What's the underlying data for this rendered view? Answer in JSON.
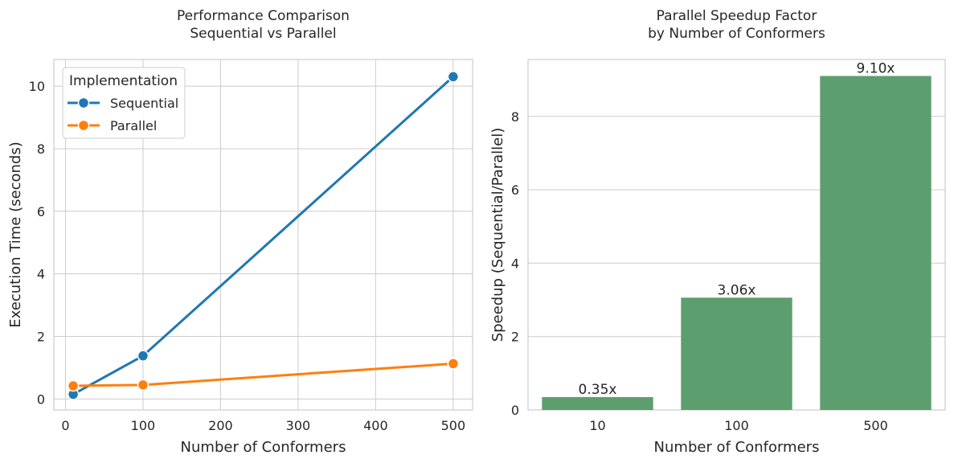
{
  "chart_data": [
    {
      "type": "line",
      "title_lines": [
        "Performance Comparison",
        "Sequential vs Parallel"
      ],
      "xlabel": "Number of Conformers",
      "ylabel": "Execution Time (seconds)",
      "xlim": [
        -15,
        525
      ],
      "ylim": [
        -0.35,
        10.85
      ],
      "xticks": [
        0,
        100,
        200,
        300,
        400,
        500
      ],
      "yticks": [
        0,
        2,
        4,
        6,
        8,
        10
      ],
      "grid": true,
      "legend": {
        "title": "Implementation",
        "placement": "top-left"
      },
      "series": [
        {
          "name": "Sequential",
          "color": "#1f77b4",
          "points": [
            {
              "x": 10,
              "y": 0.15
            },
            {
              "x": 100,
              "y": 1.38
            },
            {
              "x": 500,
              "y": 10.3
            }
          ]
        },
        {
          "name": "Parallel",
          "color": "#ff7f0e",
          "points": [
            {
              "x": 10,
              "y": 0.42
            },
            {
              "x": 100,
              "y": 0.45
            },
            {
              "x": 500,
              "y": 1.13
            }
          ]
        }
      ]
    },
    {
      "type": "bar",
      "title_lines": [
        "Parallel Speedup Factor",
        "by Number of Conformers"
      ],
      "xlabel": "Number of Conformers",
      "ylabel": "Speedup (Sequential/Parallel)",
      "categories": [
        "10",
        "100",
        "500"
      ],
      "values": [
        0.35,
        3.06,
        9.1
      ],
      "value_labels": [
        "0.35x",
        "3.06x",
        "9.10x"
      ],
      "ylim": [
        0,
        9.55
      ],
      "yticks": [
        0,
        2,
        4,
        6,
        8
      ],
      "grid": true,
      "bar_color": "#5d9e6e"
    }
  ]
}
